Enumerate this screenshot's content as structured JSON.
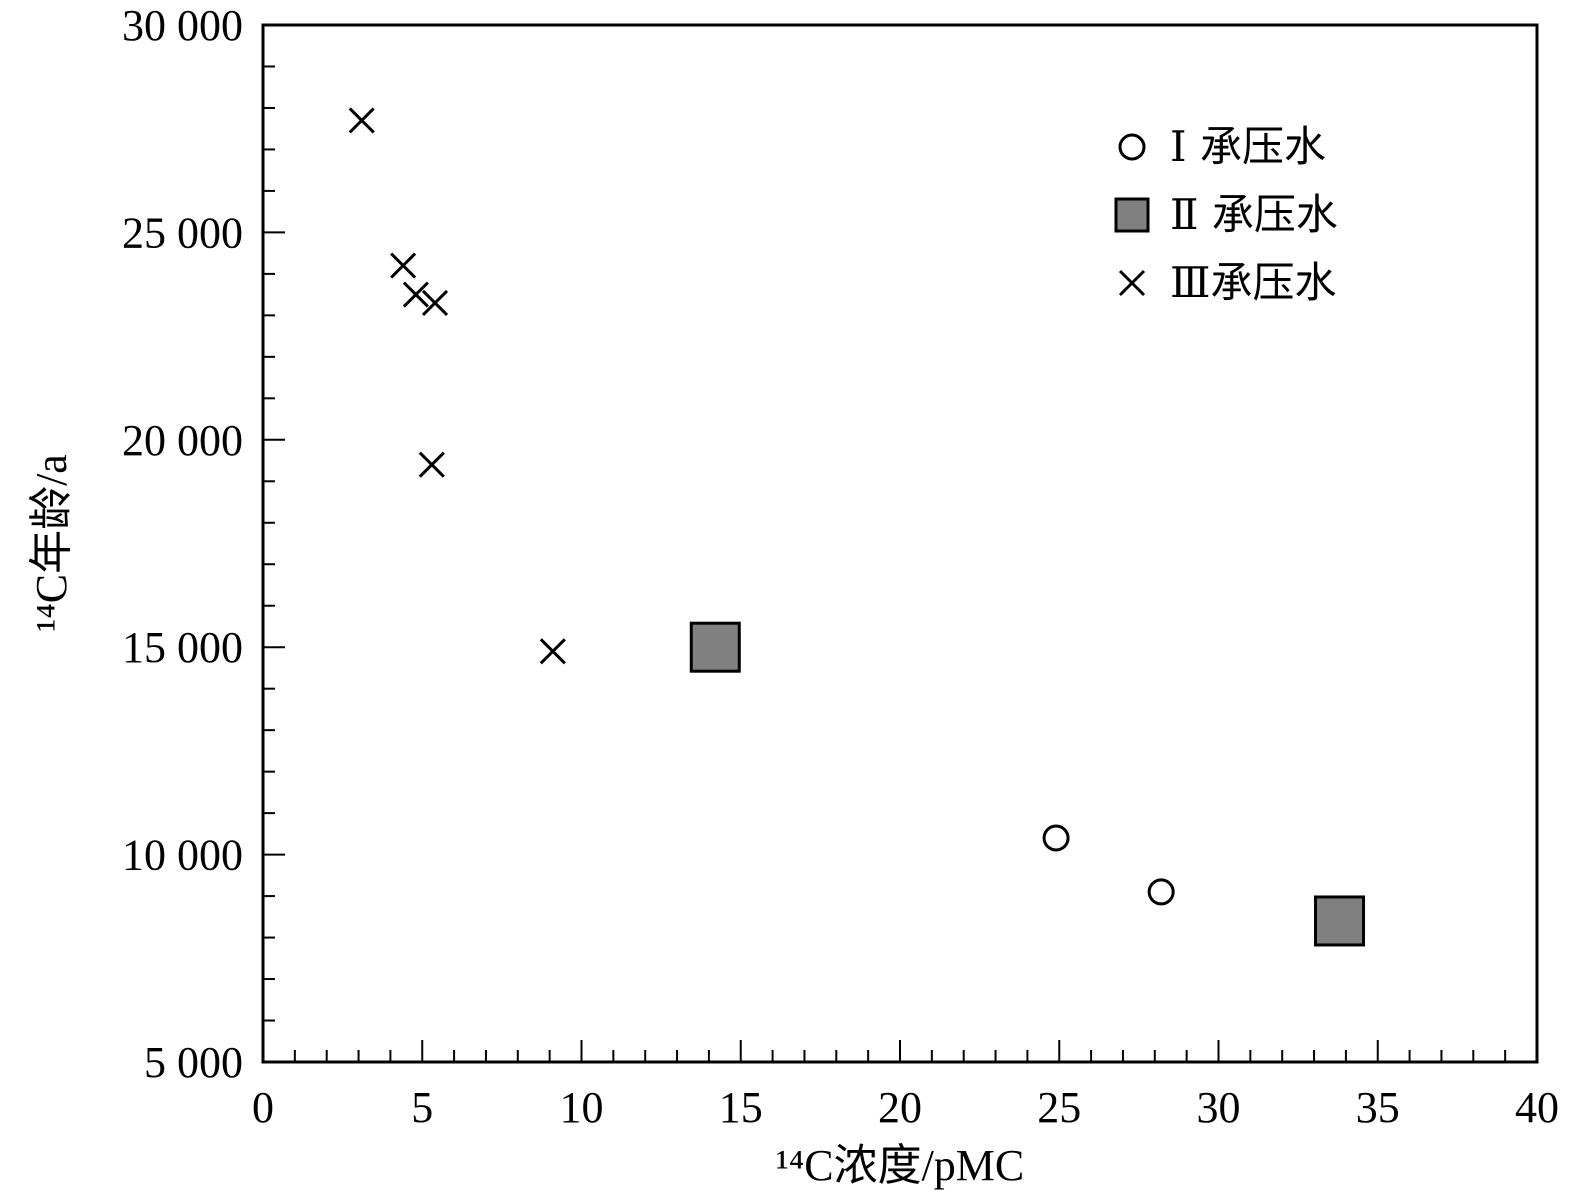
{
  "chart_data": {
    "type": "scatter",
    "xlabel": "¹⁴C浓度/pMC",
    "ylabel": "¹⁴C年龄/a",
    "xlim": [
      0,
      40
    ],
    "ylim": [
      5000,
      30000
    ],
    "x_ticks": [
      0,
      5,
      10,
      15,
      20,
      25,
      30,
      35,
      40
    ],
    "x_tick_labels": [
      "0",
      "5",
      "10",
      "15",
      "20",
      "25",
      "30",
      "35",
      "40"
    ],
    "y_ticks": [
      5000,
      10000,
      15000,
      20000,
      25000,
      30000
    ],
    "y_tick_labels": [
      "5 000",
      "10 000",
      "15 000",
      "20 000",
      "25 000",
      "30 000"
    ],
    "x_minor_step": 1,
    "y_minor_step": 1000,
    "grid": false,
    "legend_position": "top-right",
    "series": [
      {
        "name": "Ⅰ 承压水",
        "marker": "circle",
        "color": "#000000",
        "fill": "none",
        "points": [
          {
            "x": 24.9,
            "y": 10400
          },
          {
            "x": 28.2,
            "y": 9100
          }
        ]
      },
      {
        "name": "Ⅱ 承压水",
        "marker": "square",
        "color": "#000000",
        "fill": "#808080",
        "points": [
          {
            "x": 14.2,
            "y": 15000
          },
          {
            "x": 33.8,
            "y": 8400
          }
        ]
      },
      {
        "name": "Ⅲ承压水",
        "marker": "x",
        "color": "#000000",
        "fill": "none",
        "points": [
          {
            "x": 3.1,
            "y": 27700
          },
          {
            "x": 4.4,
            "y": 24200
          },
          {
            "x": 4.8,
            "y": 23500
          },
          {
            "x": 5.4,
            "y": 23300
          },
          {
            "x": 5.3,
            "y": 19400
          },
          {
            "x": 9.1,
            "y": 14900
          }
        ]
      }
    ]
  }
}
